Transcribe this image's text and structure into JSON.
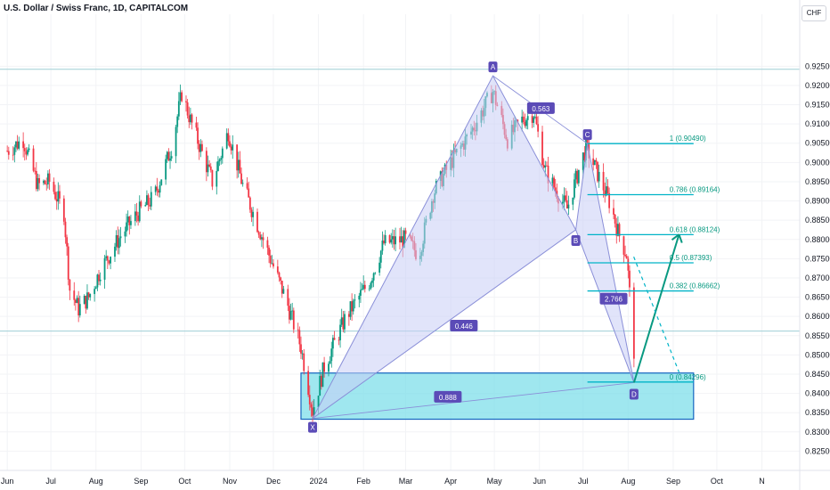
{
  "header": {
    "symbol_title": "U.S. Dollar / Swiss Franc, 1D, CAPITALCOM",
    "currency_button": "CHF"
  },
  "colors": {
    "up": "#089981",
    "down": "#f23645",
    "pattern_fill": "#c8cdf5",
    "pattern_line": "#8a8fd8",
    "fib": "#00b3c7",
    "zone_fill": "#7fdfe9",
    "zone_border": "#1565c0",
    "arrow": "#089981",
    "label_bg": "#5b4bb7"
  },
  "chart_data": {
    "type": "candlestick",
    "title": "U.S. Dollar / Swiss Franc, 1D, CAPITALCOM",
    "y_axis": {
      "range": [
        0.82,
        0.9385
      ],
      "ticks": [
        0.825,
        0.83,
        0.835,
        0.84,
        0.845,
        0.85,
        0.855,
        0.86,
        0.865,
        0.87,
        0.875,
        0.88,
        0.885,
        0.89,
        0.895,
        0.9,
        0.905,
        0.91,
        0.915,
        0.92,
        0.925
      ],
      "tick_labels": [
        "0.82500",
        "0.83000",
        "0.83500",
        "0.84000",
        "0.84500",
        "0.85000",
        "0.85500",
        "0.86000",
        "0.86500",
        "0.87000",
        "0.87500",
        "0.88000",
        "0.88500",
        "0.89000",
        "0.89500",
        "0.90000",
        "0.90500",
        "0.91000",
        "0.91500",
        "0.92000",
        "0.92500"
      ]
    },
    "x_axis": {
      "labels": [
        "Jun",
        "Jul",
        "Aug",
        "Sep",
        "Oct",
        "Nov",
        "Dec",
        "2024",
        "Feb",
        "Mar",
        "Apr",
        "May",
        "Jun",
        "Jul",
        "Aug",
        "Sep",
        "Oct",
        "N"
      ],
      "dates": [
        "2023-06-01",
        "2023-07-01",
        "2023-08-01",
        "2023-09-01",
        "2023-10-01",
        "2023-11-01",
        "2023-12-01",
        "2024-01-01",
        "2024-02-01",
        "2024-03-01",
        "2024-04-01",
        "2024-05-01",
        "2024-06-01",
        "2024-07-01",
        "2024-08-01",
        "2024-09-01",
        "2024-10-01",
        "2024-11-01"
      ]
    },
    "price_anchors": [
      [
        "2023-06-01",
        0.903
      ],
      [
        "2023-06-12",
        0.906
      ],
      [
        "2023-06-22",
        0.894
      ],
      [
        "2023-06-30",
        0.895
      ],
      [
        "2023-07-10",
        0.887
      ],
      [
        "2023-07-14",
        0.867
      ],
      [
        "2023-07-20",
        0.862
      ],
      [
        "2023-07-27",
        0.865
      ],
      [
        "2023-08-04",
        0.872
      ],
      [
        "2023-08-18",
        0.881
      ],
      [
        "2023-08-30",
        0.887
      ],
      [
        "2023-09-10",
        0.891
      ],
      [
        "2023-09-22",
        0.904
      ],
      [
        "2023-09-29",
        0.918
      ],
      [
        "2023-10-05",
        0.911
      ],
      [
        "2023-10-20",
        0.895
      ],
      [
        "2023-10-31",
        0.908
      ],
      [
        "2023-11-10",
        0.894
      ],
      [
        "2023-11-20",
        0.884
      ],
      [
        "2023-11-30",
        0.874
      ],
      [
        "2023-12-10",
        0.864
      ],
      [
        "2023-12-20",
        0.852
      ],
      [
        "2023-12-28",
        0.8355
      ],
      [
        "2024-01-05",
        0.847
      ],
      [
        "2024-01-20",
        0.86
      ],
      [
        "2024-02-05",
        0.869
      ],
      [
        "2024-02-15",
        0.879
      ],
      [
        "2024-03-01",
        0.88
      ],
      [
        "2024-03-10",
        0.876
      ],
      [
        "2024-03-20",
        0.892
      ],
      [
        "2024-04-01",
        0.9
      ],
      [
        "2024-04-15",
        0.908
      ],
      [
        "2024-04-30",
        0.9185
      ],
      [
        "2024-05-10",
        0.906
      ],
      [
        "2024-05-20",
        0.911
      ],
      [
        "2024-05-28",
        0.913
      ],
      [
        "2024-06-05",
        0.898
      ],
      [
        "2024-06-12",
        0.893
      ],
      [
        "2024-06-20",
        0.888
      ],
      [
        "2024-06-28",
        0.898
      ],
      [
        "2024-07-03",
        0.904
      ],
      [
        "2024-07-10",
        0.898
      ],
      [
        "2024-07-20",
        0.889
      ],
      [
        "2024-07-25",
        0.882
      ],
      [
        "2024-07-31",
        0.876
      ],
      [
        "2024-08-05",
        0.851
      ]
    ],
    "harmonic_pattern": {
      "points": [
        {
          "label": "X",
          "date": "2023-12-28",
          "price": 0.8335
        },
        {
          "label": "A",
          "date": "2024-04-30",
          "price": 0.9225
        },
        {
          "label": "B",
          "date": "2024-06-26",
          "price": 0.8825
        },
        {
          "label": "C",
          "date": "2024-07-04",
          "price": 0.9049
        },
        {
          "label": "D",
          "date": "2024-08-05",
          "price": 0.8428
        }
      ],
      "ratios": [
        {
          "value": "0.563",
          "date": "2024-06-02",
          "price": 0.914
        },
        {
          "value": "0.446",
          "date": "2024-04-10",
          "price": 0.8575
        },
        {
          "value": "2.766",
          "date": "2024-07-22",
          "price": 0.8645
        },
        {
          "value": "0.888",
          "date": "2024-03-30",
          "price": 0.839
        }
      ]
    },
    "fibonacci_levels": [
      {
        "ratio": 1,
        "label": "1 (0.90490)",
        "price": 0.9049
      },
      {
        "ratio": 0.786,
        "label": "0.786 (0.89164)",
        "price": 0.89164
      },
      {
        "ratio": 0.618,
        "label": "0.618 (0.88124)",
        "price": 0.88124
      },
      {
        "ratio": 0.5,
        "label": "0.5 (0.87393)",
        "price": 0.87393
      },
      {
        "ratio": 0.382,
        "label": "0.382 (0.86662)",
        "price": 0.86662
      },
      {
        "ratio": 0,
        "label": "0 (0.84296)",
        "price": 0.84296
      }
    ],
    "support_zone": {
      "start": "2023-12-20",
      "end": "2024-09-15",
      "top": 0.8453,
      "bottom": 0.8333
    },
    "horizontal_lines": [
      0.9242,
      0.8562
    ],
    "projection": {
      "from": {
        "date": "2024-08-05",
        "price": 0.8428
      },
      "to": {
        "date": "2024-09-05",
        "price": 0.8813
      }
    }
  }
}
